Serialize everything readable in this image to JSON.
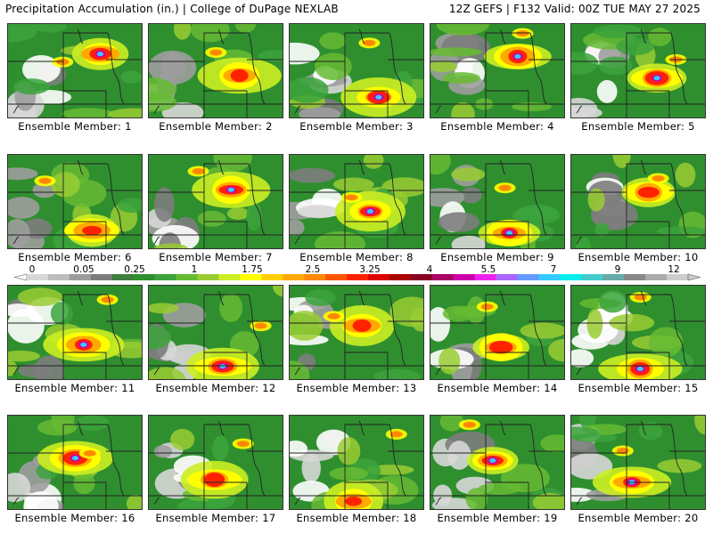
{
  "header": {
    "left_title": "Precipitation Accumulation (in.) | College of DuPage NEXLAB",
    "right_title": "12Z GEFS | F132 Valid: 00Z TUE MAY 27 2025"
  },
  "legend": {
    "tick_labels": [
      "0",
      "0.05",
      "0.25",
      "1",
      "1.75",
      "2.5",
      "3.25",
      "4",
      "5.5",
      "7",
      "9",
      "12"
    ],
    "colors": [
      "#d7d7d7",
      "#bdbdbd",
      "#9d9d9d",
      "#7d7d7d",
      "#3f7f3f",
      "#2f8f2f",
      "#3ca33c",
      "#66bb33",
      "#99cc33",
      "#ccee22",
      "#ffff00",
      "#ffd000",
      "#ffaa00",
      "#ff8800",
      "#ff5500",
      "#ff2200",
      "#dd0000",
      "#aa0000",
      "#880022",
      "#aa0066",
      "#cc00aa",
      "#ee22ee",
      "#aa66ff",
      "#6699ff",
      "#33ccff",
      "#00eeee",
      "#44cccc",
      "#66aaaa",
      "#888888",
      "#aaaaaa",
      "#cccccc"
    ]
  },
  "members": [
    {
      "label": "Ensemble Member: 1"
    },
    {
      "label": "Ensemble Member: 2"
    },
    {
      "label": "Ensemble Member: 3"
    },
    {
      "label": "Ensemble Member: 4"
    },
    {
      "label": "Ensemble Member: 5"
    },
    {
      "label": "Ensemble Member: 6"
    },
    {
      "label": "Ensemble Member: 7"
    },
    {
      "label": "Ensemble Member: 8"
    },
    {
      "label": "Ensemble Member: 9"
    },
    {
      "label": "Ensemble Member: 10"
    },
    {
      "label": "Ensemble Member: 11"
    },
    {
      "label": "Ensemble Member: 12"
    },
    {
      "label": "Ensemble Member: 13"
    },
    {
      "label": "Ensemble Member: 14"
    },
    {
      "label": "Ensemble Member: 15"
    },
    {
      "label": "Ensemble Member: 16"
    },
    {
      "label": "Ensemble Member: 17"
    },
    {
      "label": "Ensemble Member: 18"
    },
    {
      "label": "Ensemble Member: 19"
    },
    {
      "label": "Ensemble Member: 20"
    }
  ]
}
